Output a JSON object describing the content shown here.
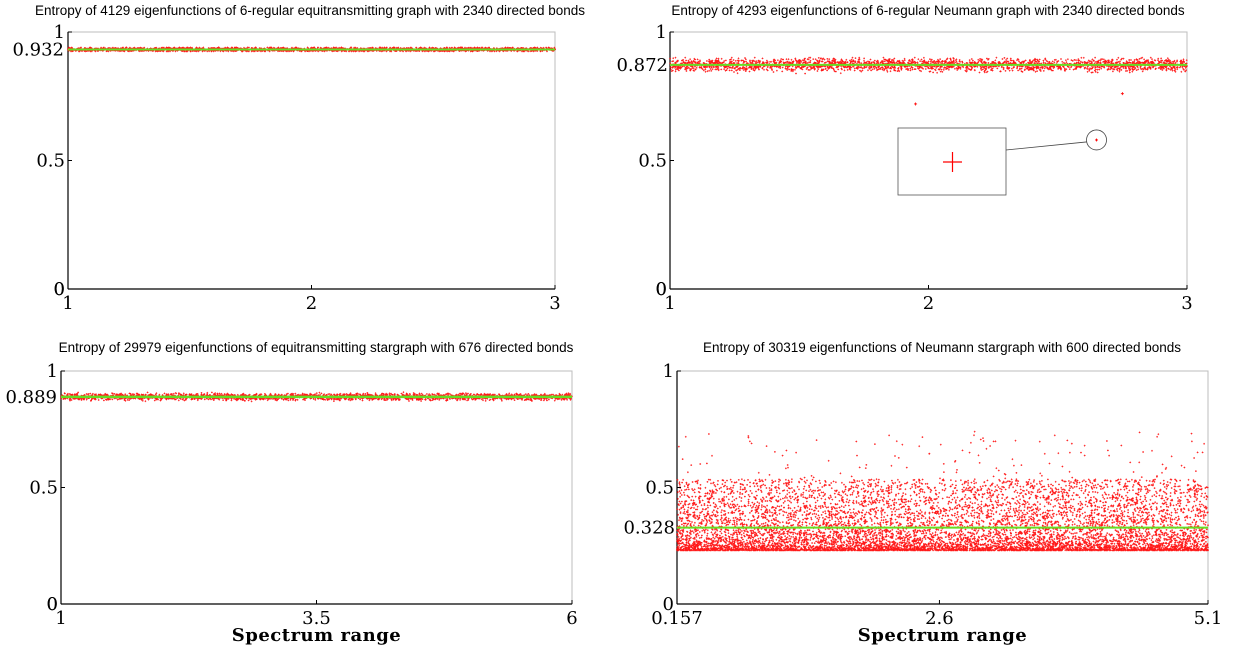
{
  "chart_data": [
    {
      "type": "scatter",
      "title": "Entropy of 4129 eigenfunctions of 6-regular equitransmitting graph with 2340 directed bonds",
      "xlabel": "",
      "ylabel": "",
      "xlim": [
        1,
        3
      ],
      "ylim": [
        0,
        1
      ],
      "xticks": [
        "1",
        "2",
        "3"
      ],
      "yticks": [
        "0",
        "0.5",
        "1"
      ],
      "mean_label": "0.932",
      "mean": 0.932,
      "count": 4129,
      "spread": 0.004,
      "min": 0.925,
      "max": 0.94,
      "grid": false,
      "colors": {
        "points": "#ff0000",
        "mean_line": "#66dd22",
        "axis": "#000000"
      }
    },
    {
      "type": "scatter",
      "title": "Entropy of 4293 eigenfunctions of 6-regular Neumann graph with 2340 directed bonds",
      "xlabel": "",
      "ylabel": "",
      "xlim": [
        1,
        3
      ],
      "ylim": [
        0,
        1
      ],
      "xticks": [
        "1",
        "2",
        "3"
      ],
      "yticks": [
        "0",
        "0.5",
        "1"
      ],
      "mean_label": "0.872",
      "mean": 0.872,
      "count": 4293,
      "spread": 0.012,
      "min": 0.79,
      "max": 0.9,
      "outliers": [
        [
          1.95,
          0.72
        ],
        [
          2.65,
          0.58
        ],
        [
          2.75,
          0.76
        ]
      ],
      "inset": {
        "symbol": "+",
        "magnifies_point": [
          2.65,
          0.58
        ]
      },
      "grid": false,
      "colors": {
        "points": "#ff0000",
        "mean_line": "#66dd22",
        "axis": "#000000"
      }
    },
    {
      "type": "scatter",
      "title": "Entropy of 29979 eigenfunctions of equitransmitting stargraph with 676 directed bonds",
      "xlabel": "Spectrum range",
      "ylabel": "",
      "xlim": [
        1,
        6
      ],
      "ylim": [
        0,
        1
      ],
      "xticks": [
        "1",
        "3.5",
        "6"
      ],
      "yticks": [
        "0",
        "0.5",
        "1"
      ],
      "mean_label": "0.889",
      "mean": 0.889,
      "count": 29979,
      "spread": 0.007,
      "min": 0.87,
      "max": 0.91,
      "grid": false,
      "colors": {
        "points": "#ff0000",
        "mean_line": "#66dd22",
        "axis": "#000000"
      }
    },
    {
      "type": "scatter",
      "title": "Entropy of 30319 eigenfunctions of Neumann stargraph with 600 directed bonds",
      "xlabel": "Spectrum range",
      "ylabel": "",
      "xlim": [
        0.157,
        5.1
      ],
      "ylim": [
        0,
        1
      ],
      "xticks": [
        "0.157",
        "2.6",
        "5.1"
      ],
      "yticks": [
        "0.5",
        "1"
      ],
      "mean_label": "0.328",
      "mean": 0.328,
      "count": 30319,
      "spread": 0.1,
      "min": 0.23,
      "max": 0.74,
      "grid": false,
      "colors": {
        "points": "#ff0000",
        "mean_line": "#66dd22",
        "axis": "#000000"
      }
    }
  ]
}
